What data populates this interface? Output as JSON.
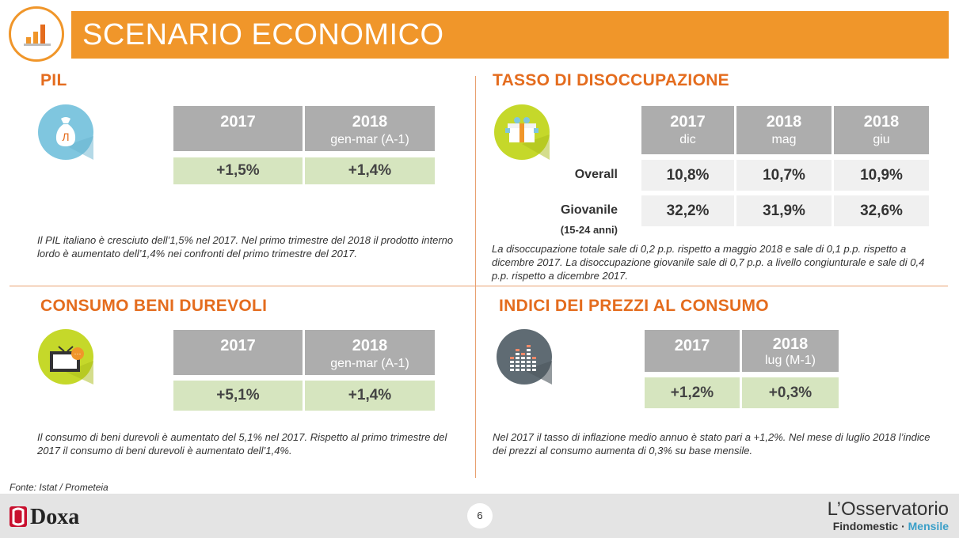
{
  "header": {
    "title": "SCENARIO ECONOMICO"
  },
  "pil": {
    "title": "PIL",
    "icon": "money-bag-icon",
    "headers": [
      {
        "year": "2017",
        "sub": ""
      },
      {
        "year": "2018",
        "sub": "gen-mar (A-1)"
      }
    ],
    "values": [
      "+1,5%",
      "+1,4%"
    ],
    "note": "Il PIL italiano è cresciuto dell’1,5% nel 2017. Nel primo trimestre del 2018 il prodotto interno lordo è aumentato dell’1,4% nei confronti del primo trimestre del 2017."
  },
  "disoccupazione": {
    "title": "TASSO DI DISOCCUPAZIONE",
    "icon": "gift-box-icon",
    "headers": [
      {
        "year": "2017",
        "sub": "dic"
      },
      {
        "year": "2018",
        "sub": "mag"
      },
      {
        "year": "2018",
        "sub": "giu"
      }
    ],
    "rows": [
      {
        "label": "Overall",
        "sublabel": "",
        "values": [
          "10,8%",
          "10,7%",
          "10,9%"
        ]
      },
      {
        "label": "Giovanile",
        "sublabel": "(15-24 anni)",
        "values": [
          "32,2%",
          "31,9%",
          "32,6%"
        ]
      }
    ],
    "note": "La disoccupazione totale sale di 0,2 p.p. rispetto a maggio 2018 e sale di 0,1 p.p. rispetto a dicembre 2017. La disoccupazione giovanile sale di 0,7 p.p. a livello congiunturale e sale di 0,4 p.p. rispetto a dicembre 2017."
  },
  "consumo": {
    "title": "CONSUMO BENI DUREVOLI",
    "icon": "television-icon",
    "headers": [
      {
        "year": "2017",
        "sub": ""
      },
      {
        "year": "2018",
        "sub": "gen-mar (A-1)"
      }
    ],
    "values": [
      "+5,1%",
      "+1,4%"
    ],
    "note": "Il consumo di beni durevoli è aumentato del 5,1% nel 2017. Rispetto al primo trimestre del 2017 il consumo di beni durevoli è aumentato dell’1,4%."
  },
  "prezzi": {
    "title": "INDICI DEI PREZZI AL CONSUMO",
    "icon": "equalizer-bars-icon",
    "headers": [
      {
        "year": "2017",
        "sub": ""
      },
      {
        "year": "2018",
        "sub": "lug (M-1)"
      }
    ],
    "values": [
      "+1,2%",
      "+0,3%"
    ],
    "note": "Nel 2017 il tasso di inflazione medio annuo è stato pari a +1,2%. Nel mese di luglio 2018 l’indice dei prezzi al consumo aumenta di 0,3% su base mensile."
  },
  "source": "Fonte: Istat / Prometeia",
  "footer": {
    "doxa": "Doxa",
    "page_number": "6",
    "brand_line1": "L’Osservatorio",
    "brand_line2a": "Findomestic",
    "brand_sep": "·",
    "brand_line2b": "Mensile"
  },
  "colors": {
    "orange": "#f0962a",
    "title_orange": "#e46c1e",
    "header_gray": "#adadad",
    "value_green": "#d6e5bf",
    "value_gray": "#f0f0f0",
    "doxa_red": "#c8102e",
    "mensile_blue": "#3a9fc8"
  }
}
